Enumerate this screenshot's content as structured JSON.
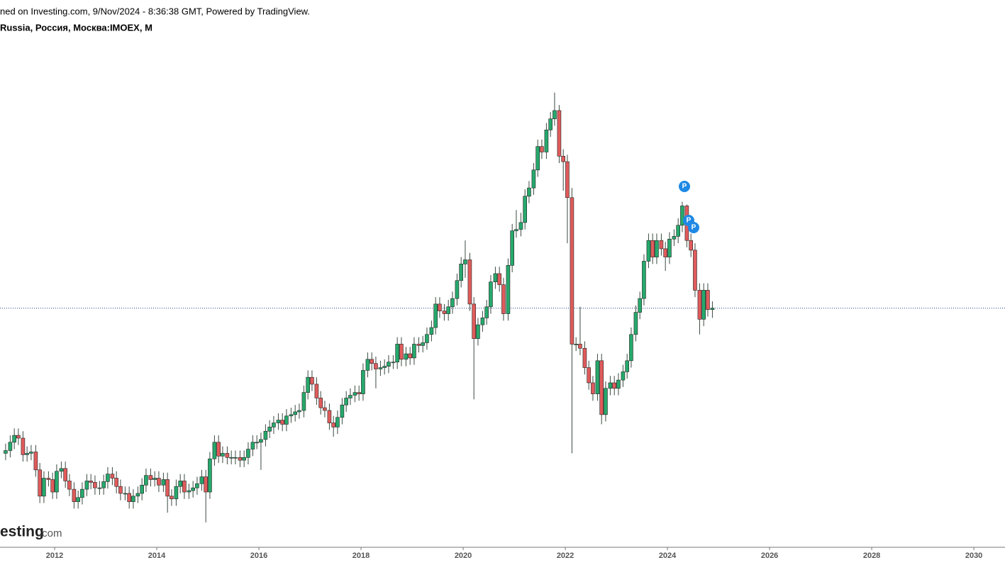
{
  "header": {
    "line1": "ned on Investing.com, 9/Nov/2024 - 8:36:38 GMT, Powered by TradingView.",
    "line2": "Russia, Россия, Москва:IMOEX, M"
  },
  "logo": {
    "name": "esting",
    "suffix": ".com"
  },
  "chart_data": {
    "type": "candlestick",
    "x": [
      2011.04,
      2011.13,
      2011.21,
      2011.29,
      2011.38,
      2011.46,
      2011.54,
      2011.63,
      2011.71,
      2011.79,
      2011.88,
      2011.96,
      2012.04,
      2012.13,
      2012.21,
      2012.29,
      2012.38,
      2012.46,
      2012.54,
      2012.63,
      2012.71,
      2012.79,
      2012.88,
      2012.96,
      2013.04,
      2013.13,
      2013.21,
      2013.29,
      2013.38,
      2013.46,
      2013.54,
      2013.63,
      2013.71,
      2013.79,
      2013.88,
      2013.96,
      2014.04,
      2014.13,
      2014.21,
      2014.29,
      2014.38,
      2014.46,
      2014.54,
      2014.63,
      2014.71,
      2014.79,
      2014.88,
      2014.96,
      2015.04,
      2015.13,
      2015.21,
      2015.29,
      2015.38,
      2015.46,
      2015.54,
      2015.63,
      2015.71,
      2015.79,
      2015.88,
      2015.96,
      2016.04,
      2016.13,
      2016.21,
      2016.29,
      2016.38,
      2016.46,
      2016.54,
      2016.63,
      2016.71,
      2016.79,
      2016.88,
      2016.96,
      2017.04,
      2017.13,
      2017.21,
      2017.29,
      2017.38,
      2017.46,
      2017.54,
      2017.63,
      2017.71,
      2017.79,
      2017.88,
      2017.96,
      2018.04,
      2018.13,
      2018.21,
      2018.29,
      2018.38,
      2018.46,
      2018.54,
      2018.63,
      2018.71,
      2018.79,
      2018.88,
      2018.96,
      2019.04,
      2019.13,
      2019.21,
      2019.29,
      2019.38,
      2019.46,
      2019.54,
      2019.63,
      2019.71,
      2019.79,
      2019.88,
      2019.96,
      2020.04,
      2020.13,
      2020.21,
      2020.29,
      2020.38,
      2020.46,
      2020.54,
      2020.63,
      2020.71,
      2020.79,
      2020.88,
      2020.96,
      2021.04,
      2021.13,
      2021.21,
      2021.29,
      2021.38,
      2021.46,
      2021.54,
      2021.63,
      2021.71,
      2021.79,
      2021.88,
      2021.96,
      2022.04,
      2022.13,
      2022.21,
      2022.29,
      2022.38,
      2022.46,
      2022.54,
      2022.63,
      2022.71,
      2022.79,
      2022.88,
      2022.96,
      2023.04,
      2023.13,
      2023.21,
      2023.29,
      2023.38,
      2023.46,
      2023.54,
      2023.63,
      2023.71,
      2023.79,
      2023.88,
      2023.96,
      2024.04,
      2024.13,
      2024.21,
      2024.29,
      2024.38,
      2024.46,
      2024.54,
      2024.63,
      2024.71,
      2024.79,
      2024.88
    ],
    "open": [
      1680,
      1700,
      1760,
      1810,
      1790,
      1670,
      1680,
      1690,
      1560,
      1370,
      1500,
      1490,
      1400,
      1550,
      1570,
      1480,
      1420,
      1330,
      1360,
      1420,
      1480,
      1470,
      1430,
      1430,
      1475,
      1530,
      1500,
      1440,
      1390,
      1390,
      1330,
      1370,
      1390,
      1450,
      1520,
      1490,
      1500,
      1450,
      1490,
      1370,
      1350,
      1440,
      1480,
      1400,
      1410,
      1430,
      1460,
      1510,
      1400,
      1640,
      1760,
      1660,
      1680,
      1650,
      1650,
      1650,
      1630,
      1650,
      1710,
      1760,
      1760,
      1780,
      1840,
      1870,
      1900,
      1920,
      1890,
      1950,
      1960,
      1980,
      1990,
      2120,
      2230,
      2180,
      2080,
      2010,
      1990,
      1900,
      1870,
      1940,
      2030,
      2080,
      2100,
      2120,
      2110,
      2280,
      2360,
      2330,
      2290,
      2300,
      2310,
      2340,
      2340,
      2470,
      2360,
      2400,
      2370,
      2470,
      2460,
      2480,
      2540,
      2590,
      2760,
      2710,
      2690,
      2740,
      2800,
      2930,
      3050,
      3080,
      2760,
      2510,
      2610,
      2660,
      2740,
      2920,
      2980,
      2900,
      2690,
      3040,
      3290,
      3300,
      3350,
      3540,
      3600,
      3730,
      3900,
      3860,
      4020,
      4100,
      4160,
      3830,
      3790,
      3530,
      2470,
      2470,
      2440,
      2300,
      2190,
      2110,
      2350,
      1960,
      2150,
      2190,
      2150,
      2210,
      2270,
      2350,
      2540,
      2700,
      2800,
      3070,
      3220,
      3100,
      3220,
      3160,
      3100,
      3230,
      3250,
      3330,
      3470,
      3220,
      3150,
      2860,
      2650,
      2860,
      2720
    ],
    "high": [
      1750,
      1810,
      1860,
      1860,
      1840,
      1730,
      1740,
      1740,
      1610,
      1550,
      1550,
      1540,
      1600,
      1620,
      1620,
      1530,
      1470,
      1410,
      1470,
      1530,
      1530,
      1520,
      1480,
      1525,
      1580,
      1580,
      1550,
      1490,
      1440,
      1440,
      1420,
      1440,
      1500,
      1570,
      1570,
      1550,
      1550,
      1540,
      1540,
      1420,
      1490,
      1530,
      1530,
      1460,
      1480,
      1510,
      1560,
      1560,
      1690,
      1810,
      1810,
      1730,
      1730,
      1700,
      1700,
      1700,
      1700,
      1760,
      1810,
      1810,
      1830,
      1890,
      1920,
      1950,
      1970,
      1970,
      2000,
      2010,
      2030,
      2040,
      2170,
      2280,
      2280,
      2230,
      2130,
      2060,
      2040,
      1950,
      1990,
      2080,
      2130,
      2150,
      2170,
      2170,
      2330,
      2410,
      2410,
      2380,
      2350,
      2360,
      2390,
      2390,
      2520,
      2520,
      2450,
      2450,
      2520,
      2520,
      2530,
      2590,
      2640,
      2810,
      2810,
      2760,
      2790,
      2850,
      2980,
      3100,
      3220,
      3130,
      2810,
      2660,
      2710,
      2790,
      2970,
      3030,
      3030,
      2950,
      3090,
      3340,
      3440,
      3420,
      3590,
      3650,
      3780,
      3950,
      3950,
      4070,
      4150,
      4290,
      4200,
      3880,
      3840,
      3600,
      2520,
      2740,
      2490,
      2350,
      2240,
      2400,
      2400,
      2200,
      2240,
      2240,
      2260,
      2320,
      2400,
      2590,
      2750,
      2850,
      3120,
      3270,
      3270,
      3270,
      3270,
      3210,
      3280,
      3300,
      3380,
      3500,
      3480,
      3270,
      3200,
      2910,
      2910,
      2910,
      2780
    ],
    "low": [
      1630,
      1650,
      1710,
      1740,
      1620,
      1620,
      1630,
      1510,
      1320,
      1320,
      1440,
      1350,
      1350,
      1500,
      1430,
      1370,
      1280,
      1280,
      1310,
      1370,
      1420,
      1380,
      1380,
      1380,
      1425,
      1450,
      1390,
      1340,
      1340,
      1280,
      1280,
      1320,
      1340,
      1400,
      1440,
      1440,
      1400,
      1400,
      1250,
      1300,
      1300,
      1390,
      1350,
      1350,
      1360,
      1380,
      1410,
      1180,
      1350,
      1590,
      1610,
      1610,
      1600,
      1600,
      1600,
      1580,
      1580,
      1600,
      1660,
      1710,
      1560,
      1730,
      1790,
      1820,
      1850,
      1840,
      1840,
      1900,
      1910,
      1930,
      1940,
      2070,
      2130,
      2030,
      1960,
      1940,
      1850,
      1800,
      1820,
      1890,
      1980,
      2030,
      2050,
      2060,
      2060,
      2230,
      2280,
      2150,
      2240,
      2250,
      2260,
      2290,
      2290,
      2310,
      2310,
      2320,
      2320,
      2410,
      2410,
      2430,
      2490,
      2540,
      2660,
      2640,
      2640,
      2690,
      2750,
      2880,
      2950,
      2710,
      2070,
      2460,
      2560,
      2610,
      2690,
      2870,
      2850,
      2640,
      2640,
      2990,
      3240,
      3250,
      3300,
      3490,
      3550,
      3680,
      3810,
      3810,
      3970,
      4050,
      3780,
      3580,
      3200,
      1680,
      2420,
      2390,
      2250,
      2140,
      2060,
      2060,
      1890,
      1910,
      2100,
      2100,
      2100,
      2160,
      2220,
      2300,
      2490,
      2650,
      2750,
      3020,
      3050,
      3050,
      3110,
      3000,
      3050,
      3180,
      3200,
      3280,
      3170,
      3100,
      2810,
      2540,
      2600,
      2670,
      2660
    ],
    "close": [
      1700,
      1760,
      1810,
      1790,
      1670,
      1680,
      1690,
      1560,
      1370,
      1500,
      1490,
      1400,
      1550,
      1570,
      1480,
      1420,
      1330,
      1360,
      1420,
      1480,
      1470,
      1430,
      1430,
      1475,
      1530,
      1500,
      1440,
      1390,
      1390,
      1330,
      1370,
      1390,
      1450,
      1520,
      1490,
      1500,
      1450,
      1490,
      1370,
      1350,
      1440,
      1480,
      1400,
      1410,
      1430,
      1460,
      1510,
      1400,
      1640,
      1760,
      1660,
      1680,
      1650,
      1650,
      1650,
      1630,
      1650,
      1710,
      1760,
      1760,
      1780,
      1840,
      1870,
      1900,
      1920,
      1890,
      1950,
      1960,
      1980,
      1990,
      2120,
      2230,
      2180,
      2080,
      2010,
      1990,
      1900,
      1870,
      1940,
      2030,
      2080,
      2100,
      2120,
      2110,
      2280,
      2360,
      2330,
      2290,
      2300,
      2310,
      2340,
      2340,
      2470,
      2360,
      2400,
      2370,
      2470,
      2460,
      2480,
      2540,
      2590,
      2760,
      2710,
      2690,
      2740,
      2800,
      2930,
      3050,
      3080,
      2760,
      2510,
      2610,
      2660,
      2740,
      2920,
      2980,
      2900,
      2690,
      3040,
      3290,
      3300,
      3350,
      3540,
      3600,
      3730,
      3900,
      3860,
      4020,
      4100,
      4160,
      3830,
      3790,
      3530,
      2470,
      2470,
      2440,
      2300,
      2190,
      2110,
      2350,
      1960,
      2150,
      2190,
      2150,
      2210,
      2270,
      2350,
      2540,
      2700,
      2800,
      3070,
      3220,
      3100,
      3220,
      3160,
      3100,
      3230,
      3250,
      3330,
      3470,
      3220,
      3150,
      2860,
      2650,
      2860,
      2720,
      2730
    ],
    "up_color": "#26a96c",
    "down_color": "#e05b5b",
    "xlim": [
      2010.93,
      2030.61
    ],
    "xticks": [
      2012,
      2014,
      2016,
      2018,
      2020,
      2022,
      2024,
      2026,
      2028,
      2030
    ],
    "ylim": [
      1000,
      4960
    ],
    "last_price_line": true
  }
}
